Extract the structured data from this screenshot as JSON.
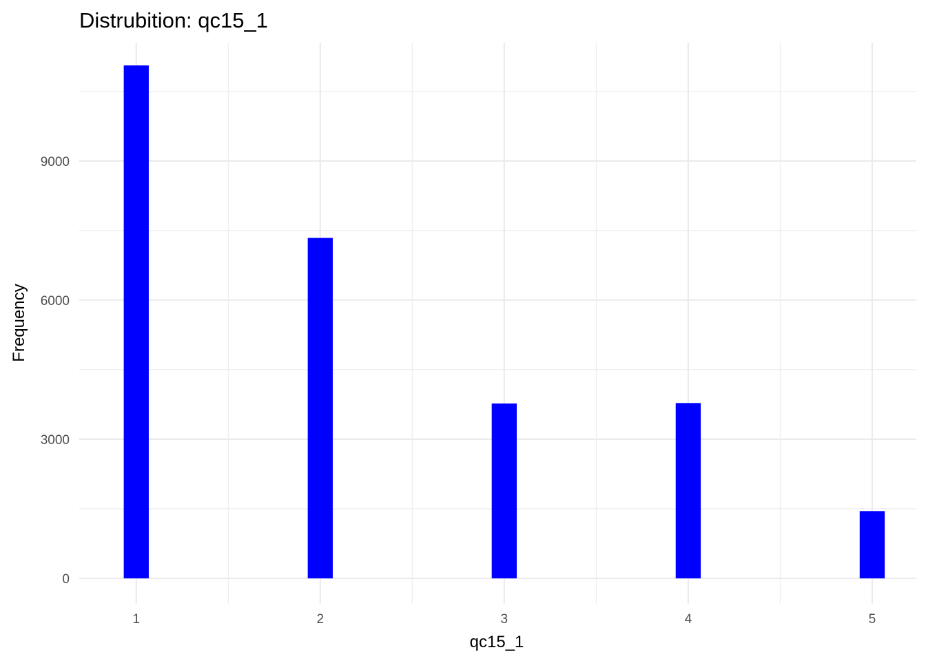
{
  "chart_data": {
    "type": "bar",
    "title": "Distrubition: qc15_1",
    "xlabel": "qc15_1",
    "ylabel": "Frequency",
    "categories": [
      1,
      2,
      3,
      4,
      5
    ],
    "x_ticks": [
      1,
      2,
      3,
      4,
      5
    ],
    "x_minor_ticks": [
      1.5,
      2.5,
      3.5,
      4.5
    ],
    "y_ticks": [
      0,
      3000,
      6000,
      9000
    ],
    "y_minor_ticks": [
      1500,
      4500,
      7500,
      10500
    ],
    "xlim": [
      0.69,
      5.24
    ],
    "ylim": [
      -550,
      11550
    ],
    "series": [
      {
        "values": [
          11060,
          7340,
          3770,
          3780,
          1450
        ]
      }
    ],
    "bar_color": "#0000FF",
    "grid": true,
    "gridline_color": "#EBEBEB",
    "legend": "none"
  }
}
